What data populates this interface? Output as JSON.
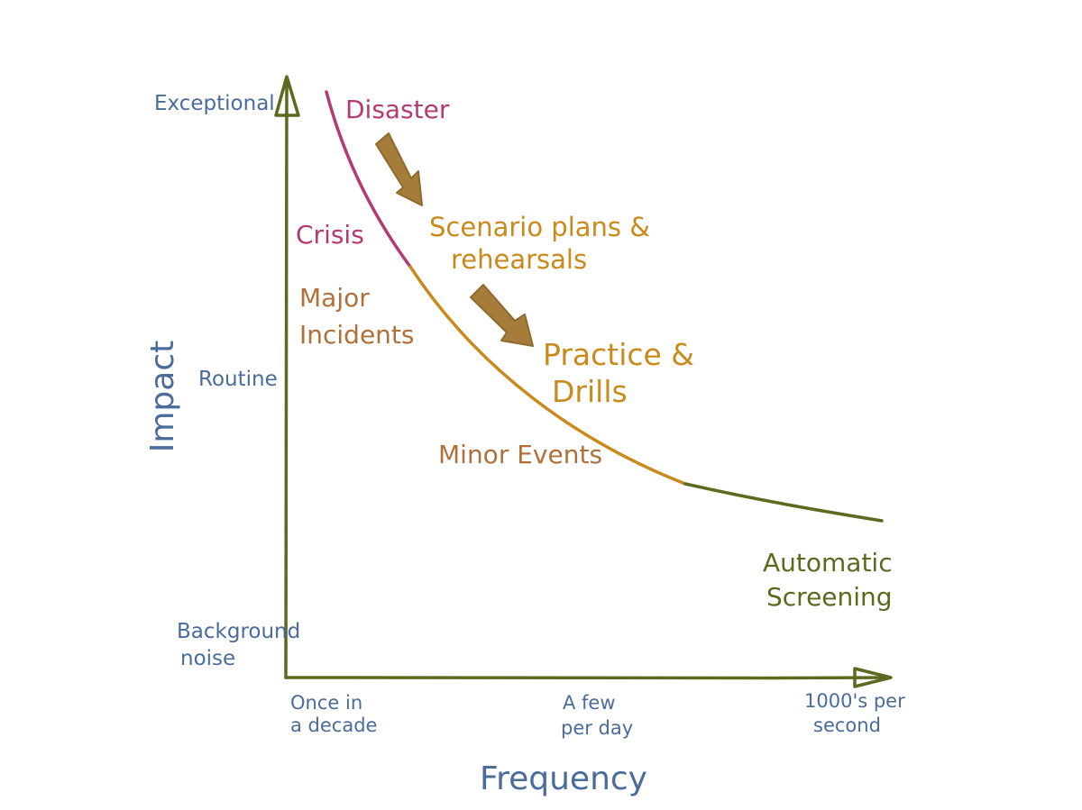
{
  "colors": {
    "axis": "#5b6a1e",
    "axis_label": "#4a6c9b",
    "disaster": "#b33a74",
    "orange": "#c98a1c",
    "brown_text": "#b0703a",
    "arrow_fill": "#a57c3a",
    "arrow_stroke": "#8f6a2c",
    "green_text": "#5b6a1e"
  },
  "axes": {
    "y_title": "Impact",
    "x_title": "Frequency",
    "y_ticks": {
      "exceptional": "Exceptional",
      "routine": "Routine",
      "background_line1": "Background",
      "background_line2": "noise"
    },
    "x_ticks": {
      "decade_line1": "Once in",
      "decade_line2": "a decade",
      "day_line1": "A few",
      "day_line2": "per day",
      "second_line1": "1000's per",
      "second_line2": "second"
    }
  },
  "zones": {
    "disaster": "Disaster",
    "crisis": "Crisis",
    "major_line1": "Major",
    "major_line2": "Incidents",
    "minor": "Minor Events",
    "automatic_line1": "Automatic",
    "automatic_line2": "Screening"
  },
  "responses": {
    "scenario_line1": "Scenario plans &",
    "scenario_line2": "rehearsals",
    "practice_line1": "Practice &",
    "practice_line2": "Drills"
  },
  "arrows": {
    "first_icon": "down-right-arrow-icon",
    "second_icon": "down-right-arrow-icon"
  }
}
